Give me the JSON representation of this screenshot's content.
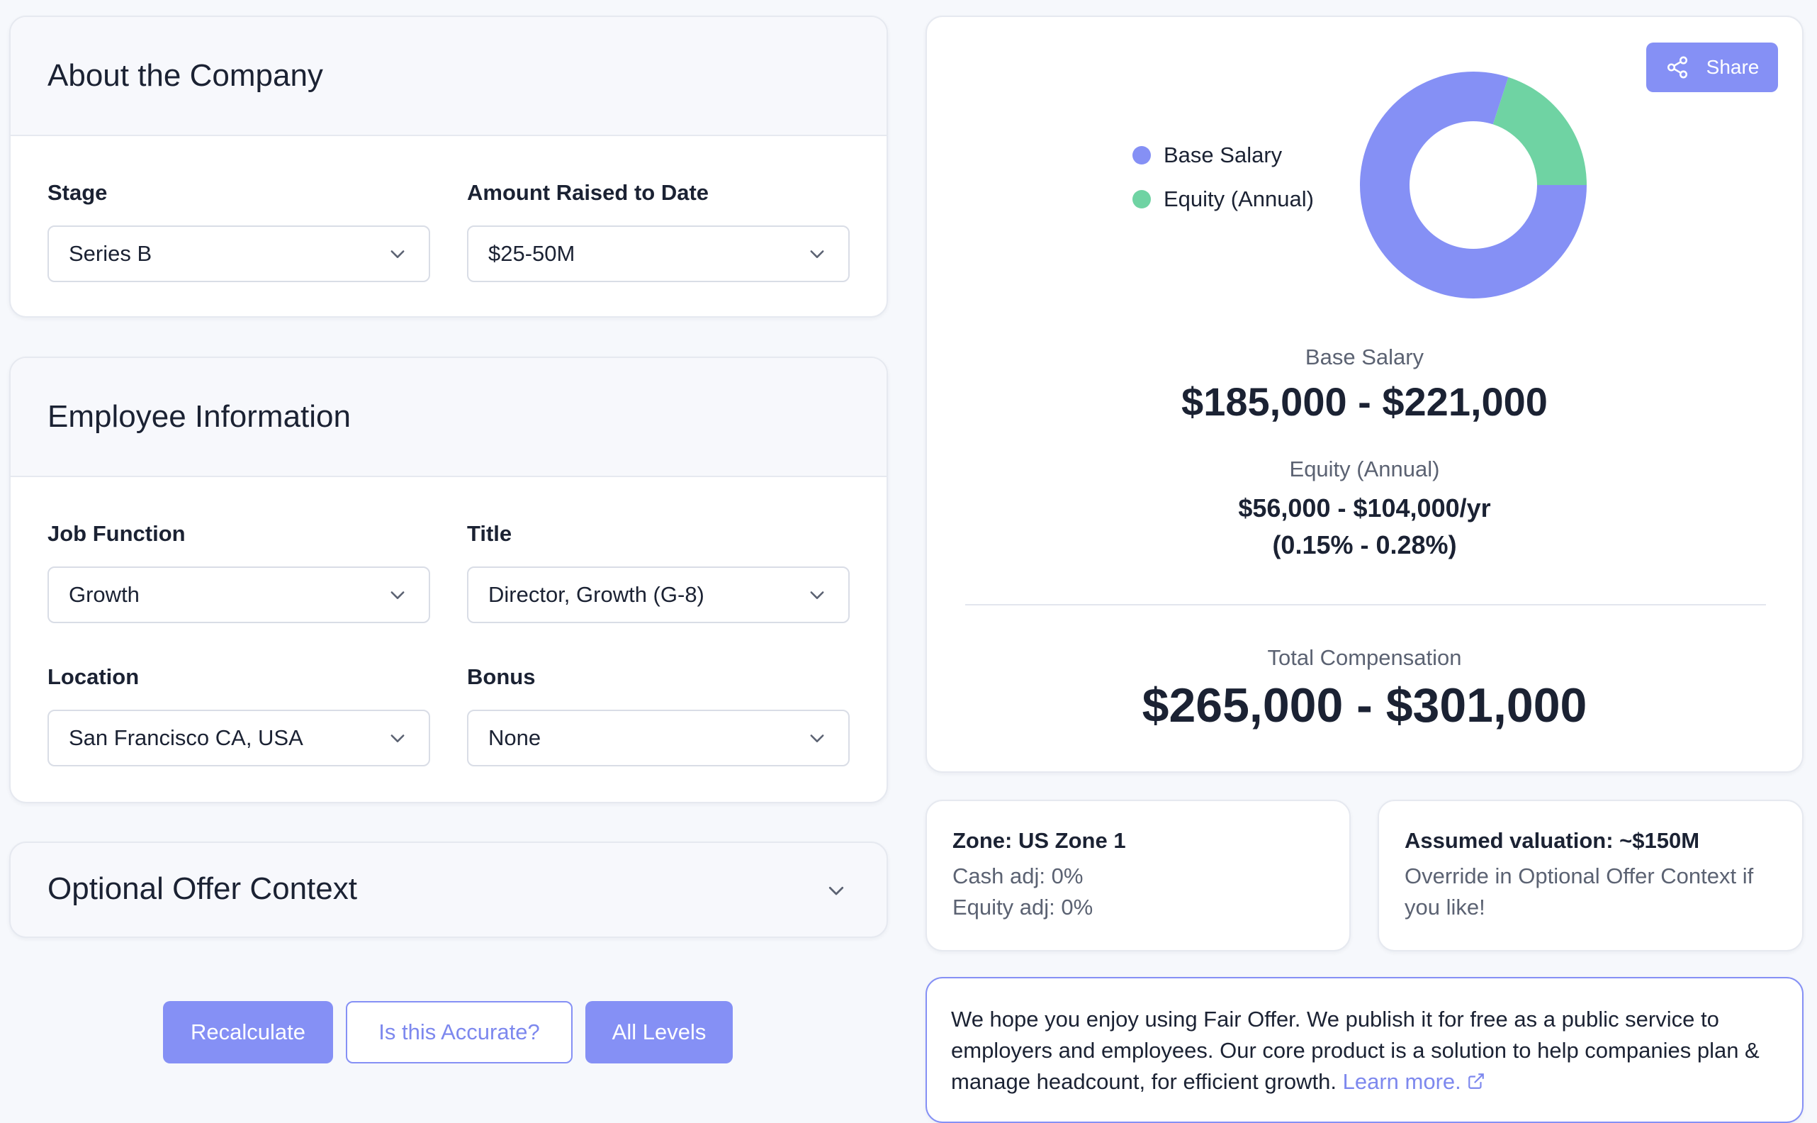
{
  "company": {
    "title": "About the Company",
    "stage_label": "Stage",
    "stage_value": "Series B",
    "raised_label": "Amount Raised to Date",
    "raised_value": "$25-50M"
  },
  "employee": {
    "title": "Employee Information",
    "job_function_label": "Job Function",
    "job_function_value": "Growth",
    "title_label": "Title",
    "title_value": "Director, Growth (G-8)",
    "location_label": "Location",
    "location_value": "San Francisco CA, USA",
    "bonus_label": "Bonus",
    "bonus_value": "None"
  },
  "optional": {
    "title": "Optional Offer Context"
  },
  "buttons": {
    "recalculate": "Recalculate",
    "accurate": "Is this Accurate?",
    "all_levels": "All Levels",
    "share": "Share"
  },
  "results": {
    "legend": [
      "Base Salary",
      "Equity (Annual)"
    ],
    "base_label": "Base Salary",
    "base_value": "$185,000 - $221,000",
    "equity_label": "Equity (Annual)",
    "equity_value": "$56,000 - $104,000/yr",
    "equity_pct": "(0.15% - 0.28%)",
    "total_label": "Total Compensation",
    "total_value": "$265,000 - $301,000"
  },
  "donut": {
    "base_fraction": 0.8,
    "equity_fraction": 0.2,
    "colors": {
      "base": "#8590f5",
      "equity": "#6fd3a3"
    }
  },
  "zone": {
    "title": "Zone: US Zone 1",
    "cash": "Cash adj: 0%",
    "equity": "Equity adj: 0%"
  },
  "valuation": {
    "title": "Assumed valuation: ~$150M",
    "note": "Override in Optional Offer Context if you like!"
  },
  "footer": {
    "text": "We hope you enjoy using Fair Offer. We publish it for free as a public service to employers and employees. Our core product is a solution to help companies plan & manage headcount, for efficient growth.",
    "link": "Learn more."
  },
  "colors": {
    "accent": "#8590f5",
    "equity": "#6fd3a3",
    "text": "#1b2233",
    "muted": "#5b6272"
  }
}
